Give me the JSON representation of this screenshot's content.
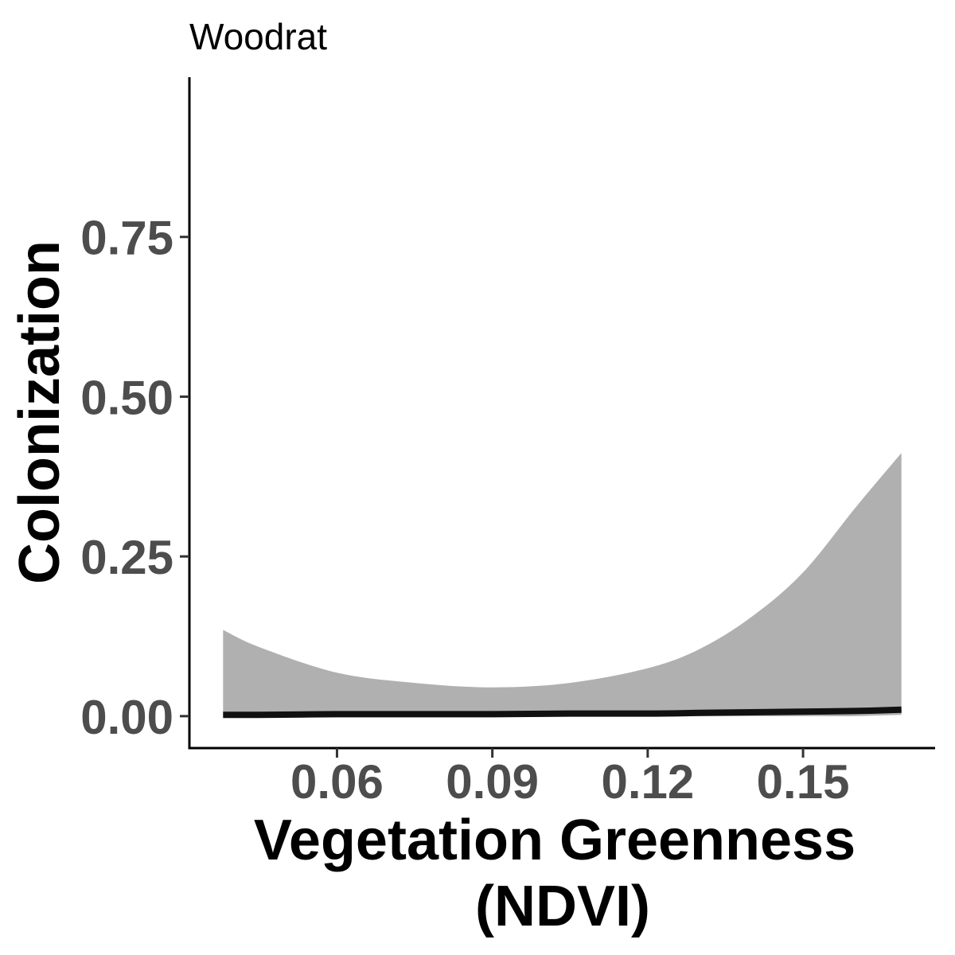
{
  "chart_data": {
    "type": "line",
    "title": "Woodrat",
    "xlabel_lines": [
      "Vegetation Greenness",
      "(NDVI)"
    ],
    "ylabel": "Colonization",
    "xlim": [
      0.0315,
      0.1755
    ],
    "ylim": [
      -0.05,
      1.0
    ],
    "x_ticks": [
      0.06,
      0.09,
      0.12,
      0.15
    ],
    "x_tick_labels": [
      "0.06",
      "0.09",
      "0.12",
      "0.15"
    ],
    "y_ticks": [
      0.0,
      0.25,
      0.5,
      0.75
    ],
    "y_tick_labels": [
      "0.00",
      "0.25",
      "0.50",
      "0.75"
    ],
    "grid": false,
    "line_color": "#111111",
    "ribbon_color": "#b0b0b0",
    "series": [
      {
        "x": [
          0.038,
          0.045,
          0.06,
          0.075,
          0.09,
          0.105,
          0.12,
          0.13,
          0.14,
          0.15,
          0.16,
          0.169
        ],
        "y": [
          0.002,
          0.002,
          0.003,
          0.003,
          0.003,
          0.004,
          0.004,
          0.005,
          0.006,
          0.007,
          0.008,
          0.01
        ],
        "lower": [
          0.0,
          0.0,
          0.0,
          0.0,
          0.0,
          0.0,
          0.0,
          0.0,
          0.0,
          0.0,
          0.0,
          0.002
        ],
        "upper": [
          0.135,
          0.108,
          0.068,
          0.052,
          0.045,
          0.052,
          0.075,
          0.105,
          0.155,
          0.225,
          0.325,
          0.412
        ]
      }
    ]
  }
}
